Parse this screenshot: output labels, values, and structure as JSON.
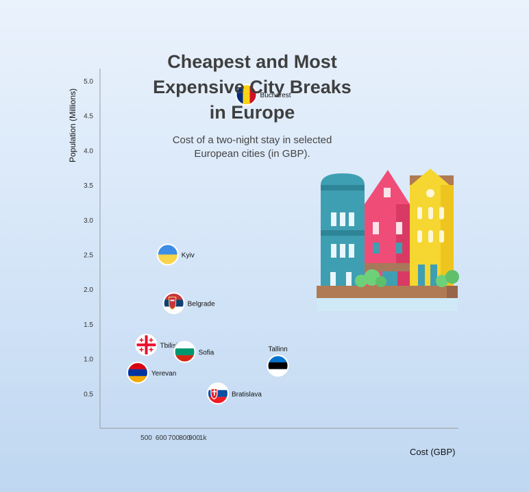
{
  "chart_data": {
    "type": "scatter",
    "title": "Cheapest and Most\nExpensive City Breaks\nin Europe",
    "subtitle": "Cost of a two-night stay in selected European cities (in GBP).",
    "xlabel": "Cost (GBP)",
    "ylabel": "Population (Millions)",
    "x_scale": "log",
    "x_ticks": [
      500,
      600,
      700,
      800,
      900,
      1000
    ],
    "x_tick_labels": [
      "500",
      "600",
      "700",
      "800",
      "900",
      "1k"
    ],
    "y_ticks": [
      0.5,
      1.0,
      1.5,
      2.0,
      2.5,
      3.0,
      3.5,
      4.0,
      4.5,
      5.0
    ],
    "y_tick_labels": [
      "0.5",
      "1.0",
      "1.5",
      "2.0",
      "2.5",
      "3.0",
      "3.5",
      "4.0",
      "4.5",
      "5.0"
    ],
    "ylim": [
      0,
      5.2
    ],
    "points": [
      {
        "label": "Yerevan",
        "x": 450,
        "y": 0.8,
        "flag": "armenia"
      },
      {
        "label": "Tbilisi",
        "x": 500,
        "y": 1.2,
        "flag": "georgia"
      },
      {
        "label": "Kyiv",
        "x": 650,
        "y": 2.5,
        "flag": "ukraine"
      },
      {
        "label": "Belgrade",
        "x": 700,
        "y": 1.8,
        "flag": "serbia"
      },
      {
        "label": "Sofia",
        "x": 800,
        "y": 1.1,
        "flag": "bulgaria"
      },
      {
        "label": "Bratislava",
        "x": 1200,
        "y": 0.5,
        "flag": "slovakia"
      },
      {
        "label": "Bucharest",
        "x": 1700,
        "y": 4.8,
        "flag": "romania"
      },
      {
        "label": "Tallinn",
        "x": 2500,
        "y": 0.9,
        "flag": "estonia",
        "label_position": "above"
      }
    ]
  },
  "illustration": {
    "icon": "colorful-houses-icon"
  },
  "colors": {
    "axis": "#9a9a9a",
    "title": "#3f3f3f",
    "armenia": [
      "#d90012",
      "#0033a0",
      "#f2a800"
    ],
    "georgia": [
      "#ffffff",
      "#e8112d"
    ],
    "ukraine": [
      "#3c8ee6",
      "#f8d44a"
    ],
    "serbia": [
      "#c6363c",
      "#0c4076",
      "#ffffff"
    ],
    "bulgaria": [
      "#ffffff",
      "#00966e",
      "#d62612"
    ],
    "slovakia": [
      "#ffffff",
      "#0b4ea2",
      "#ee1c25"
    ],
    "romania": [
      "#002b7f",
      "#fcd116",
      "#ce1126"
    ],
    "estonia": [
      "#0072ce",
      "#000000",
      "#ffffff"
    ]
  }
}
